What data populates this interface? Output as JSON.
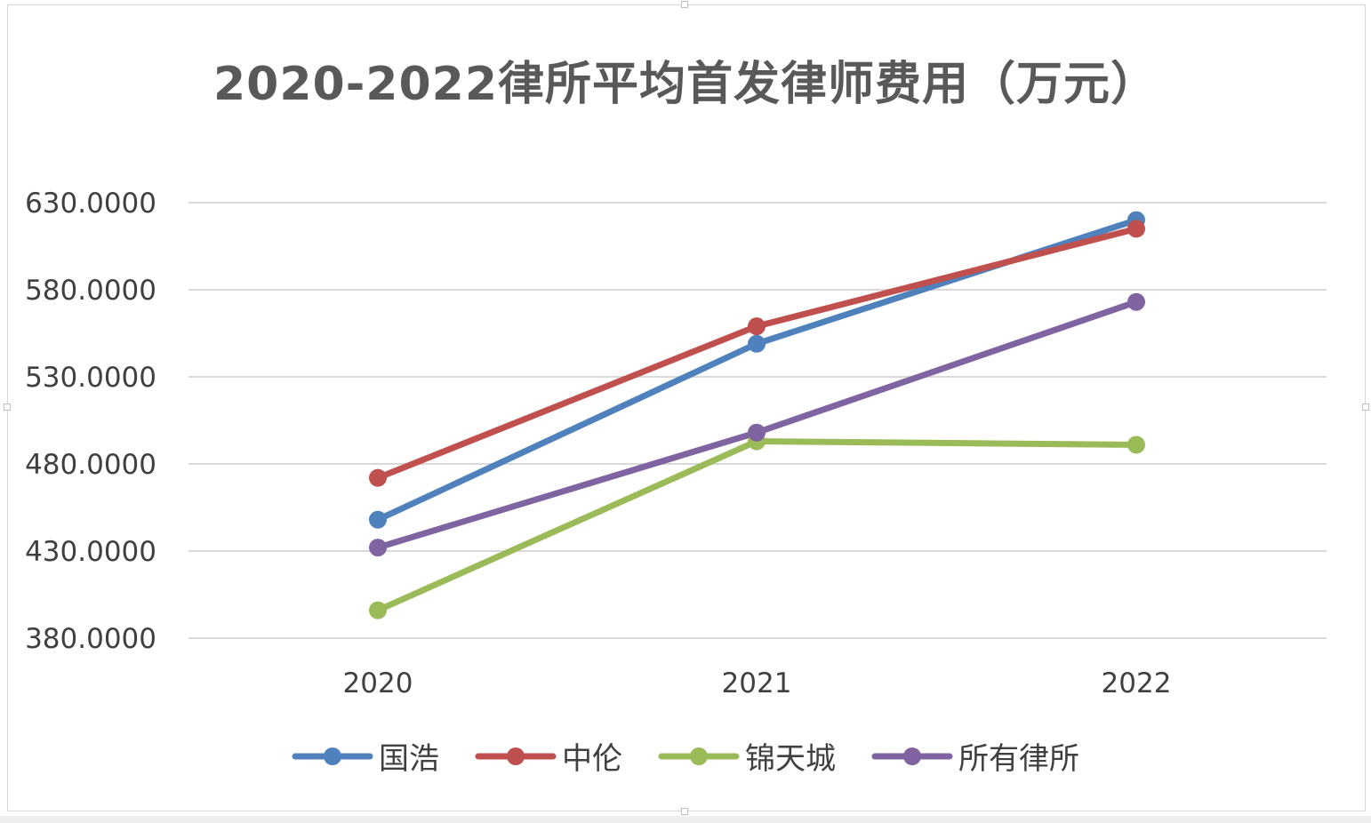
{
  "chart_data": {
    "type": "line",
    "title": "2020-2022律所平均首发律师费用（万元）",
    "xlabel": "",
    "ylabel": "",
    "categories": [
      "2020",
      "2021",
      "2022"
    ],
    "ylim": [
      380,
      630
    ],
    "yticks": [
      380,
      430,
      480,
      530,
      580,
      630
    ],
    "ytick_labels": [
      "380.0000",
      "430.0000",
      "480.0000",
      "530.0000",
      "580.0000",
      "630.0000"
    ],
    "grid": true,
    "legend_position": "bottom",
    "series": [
      {
        "name": "国浩",
        "color": "#4F81BD",
        "values": [
          448,
          549,
          620
        ]
      },
      {
        "name": "中伦",
        "color": "#C0504D",
        "values": [
          472,
          559,
          615
        ]
      },
      {
        "name": "锦天城",
        "color": "#9BBB59",
        "values": [
          396,
          493,
          491
        ]
      },
      {
        "name": "所有律所",
        "color": "#8064A2",
        "values": [
          432,
          498,
          573
        ]
      }
    ]
  },
  "colors": {
    "grid": "#d9d9d9",
    "axis_text": "#404040",
    "title": "#595959"
  }
}
